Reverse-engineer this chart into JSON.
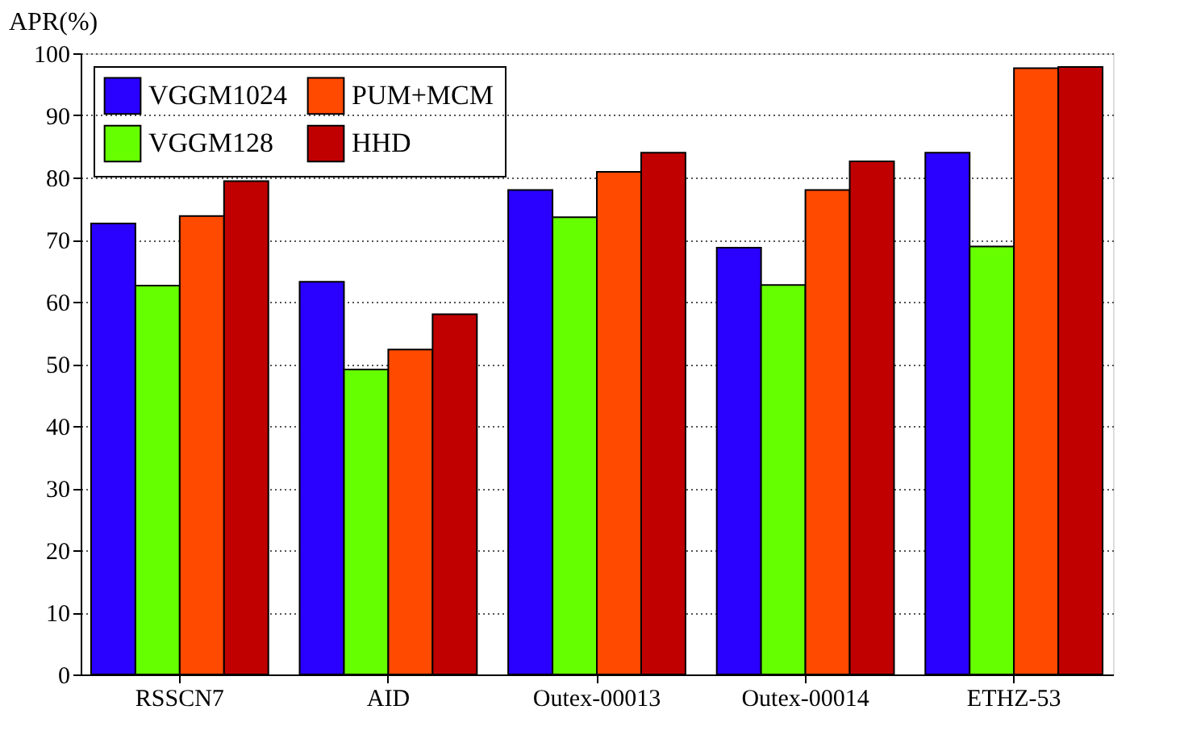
{
  "chart_data": {
    "type": "bar",
    "ylabel": "APR(%)",
    "categories": [
      "RSSCN7",
      "AID",
      "Outex-00013",
      "Outex-00014",
      "ETHZ-53"
    ],
    "series": [
      {
        "name": "VGGM1024",
        "color": "#2a00ff",
        "values": [
          72.6,
          63.2,
          78.0,
          68.7,
          84.0
        ]
      },
      {
        "name": "VGGM128",
        "color": "#66ff00",
        "values": [
          62.6,
          49.1,
          73.6,
          62.7,
          68.9
        ]
      },
      {
        "name": "PUM+MCM",
        "color": "#ff4a00",
        "values": [
          73.8,
          52.3,
          80.9,
          78.0,
          97.6
        ]
      },
      {
        "name": "HHD",
        "color": "#c00000",
        "values": [
          79.4,
          58.0,
          84.0,
          82.6,
          97.8
        ]
      }
    ],
    "ylim": [
      0,
      100
    ],
    "yticks": [
      0,
      10,
      20,
      30,
      40,
      50,
      60,
      70,
      80,
      90,
      100
    ],
    "grid": "y",
    "legend": "top left"
  }
}
